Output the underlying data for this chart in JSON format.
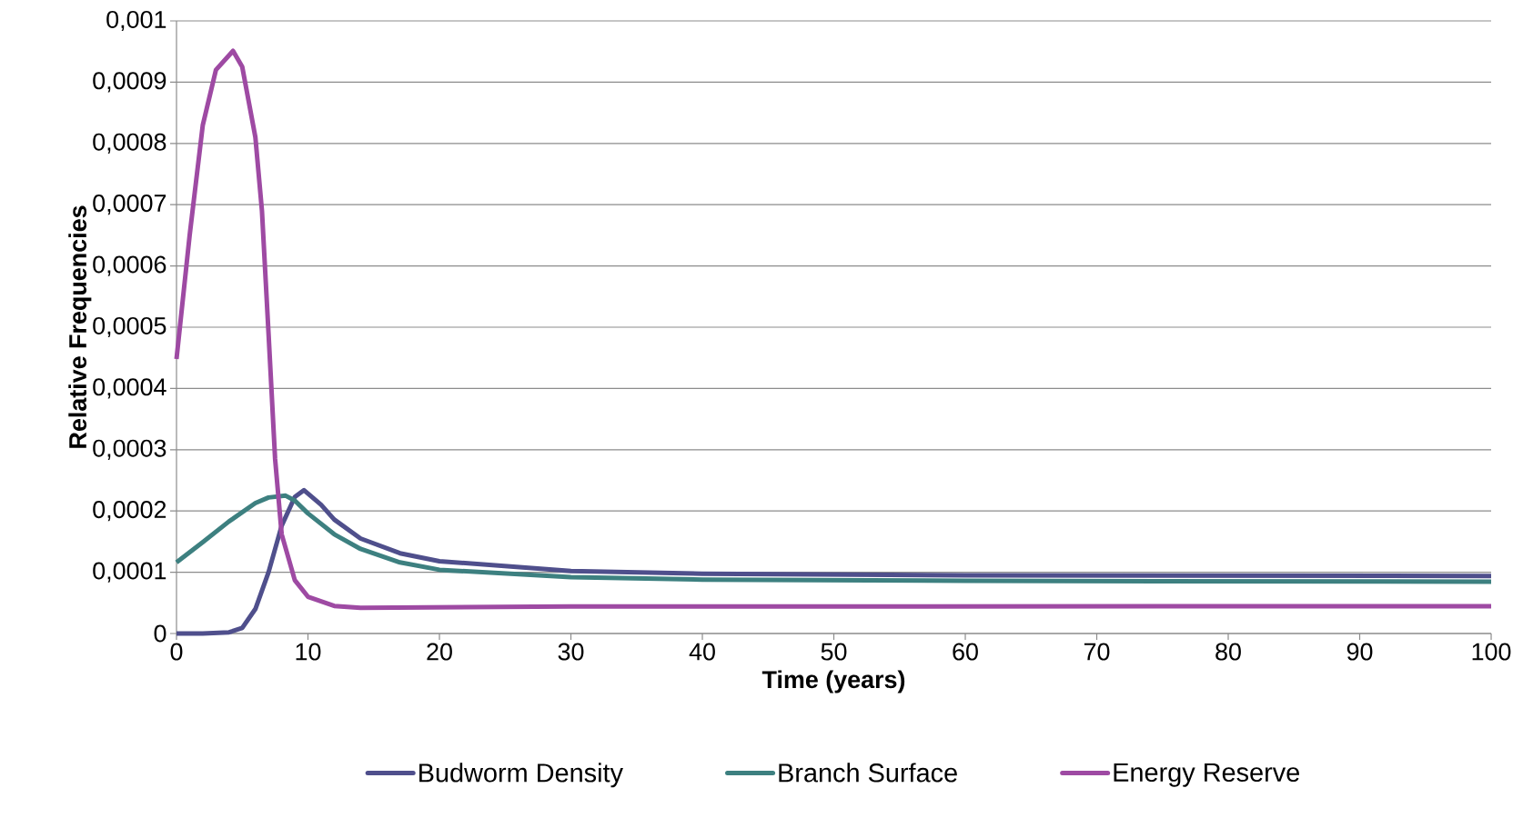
{
  "chart_data": {
    "type": "line",
    "xlabel": "Time (years)",
    "ylabel": "Relative Frequencies",
    "xlim": [
      0,
      100
    ],
    "xticks": [
      0,
      10,
      20,
      30,
      40,
      50,
      60,
      70,
      80,
      90,
      100
    ],
    "ylim": [
      0,
      0.001
    ],
    "yticks": [
      {
        "value": 0,
        "label": "0"
      },
      {
        "value": 0.0001,
        "label": "0,0001"
      },
      {
        "value": 0.0002,
        "label": "0,0002"
      },
      {
        "value": 0.0003,
        "label": "0,0003"
      },
      {
        "value": 0.0004,
        "label": "0,0004"
      },
      {
        "value": 0.0005,
        "label": "0,0005"
      },
      {
        "value": 0.0006,
        "label": "0,0006"
      },
      {
        "value": 0.0007,
        "label": "0,0007"
      },
      {
        "value": 0.0008,
        "label": "0,0008"
      },
      {
        "value": 0.0009,
        "label": "0,0009"
      },
      {
        "value": 0.001,
        "label": "0,001"
      }
    ],
    "grid": "y",
    "legend": "bottom",
    "marker": "none",
    "line_style": "solid",
    "series": [
      {
        "name": "Budworm Density",
        "color": "#4f4f8c",
        "x": [
          0,
          2,
          4,
          5,
          6,
          7,
          8,
          9,
          9.7,
          11,
          12,
          14,
          17,
          20,
          30,
          40,
          60,
          100
        ],
        "values": [
          0,
          0,
          2e-06,
          9e-06,
          4e-05,
          0.0001,
          0.000176,
          0.000223,
          0.000234,
          0.00021,
          0.000186,
          0.000155,
          0.000131,
          0.000118,
          0.000102,
          9.75e-05,
          9.5e-05,
          9.4e-05
        ]
      },
      {
        "name": "Branch Surface",
        "color": "#3d8080",
        "x": [
          0,
          2,
          4,
          6,
          7,
          8.3,
          9,
          10,
          12,
          14,
          17,
          20,
          30,
          40,
          60,
          100
        ],
        "values": [
          0.000116,
          0.000149,
          0.000183,
          0.000213,
          0.000222,
          0.000225,
          0.000217,
          0.000196,
          0.000162,
          0.000138,
          0.000116,
          0.000104,
          9.2e-05,
          8.8e-05,
          8.6e-05,
          8.45e-05
        ]
      },
      {
        "name": "Energy Reserve",
        "color": "#9e4aa3",
        "x": [
          0,
          1,
          2,
          3,
          4.3,
          5,
          6,
          6.5,
          7,
          7.5,
          8,
          9,
          10,
          12,
          14,
          30,
          100
        ],
        "values": [
          0.000448,
          0.00065,
          0.00083,
          0.00092,
          0.000951,
          0.000925,
          0.00081,
          0.00069,
          0.00049,
          0.000285,
          0.000162,
          8.7e-05,
          6e-05,
          4.5e-05,
          4.2e-05,
          4.4e-05,
          4.46e-05
        ]
      }
    ]
  }
}
